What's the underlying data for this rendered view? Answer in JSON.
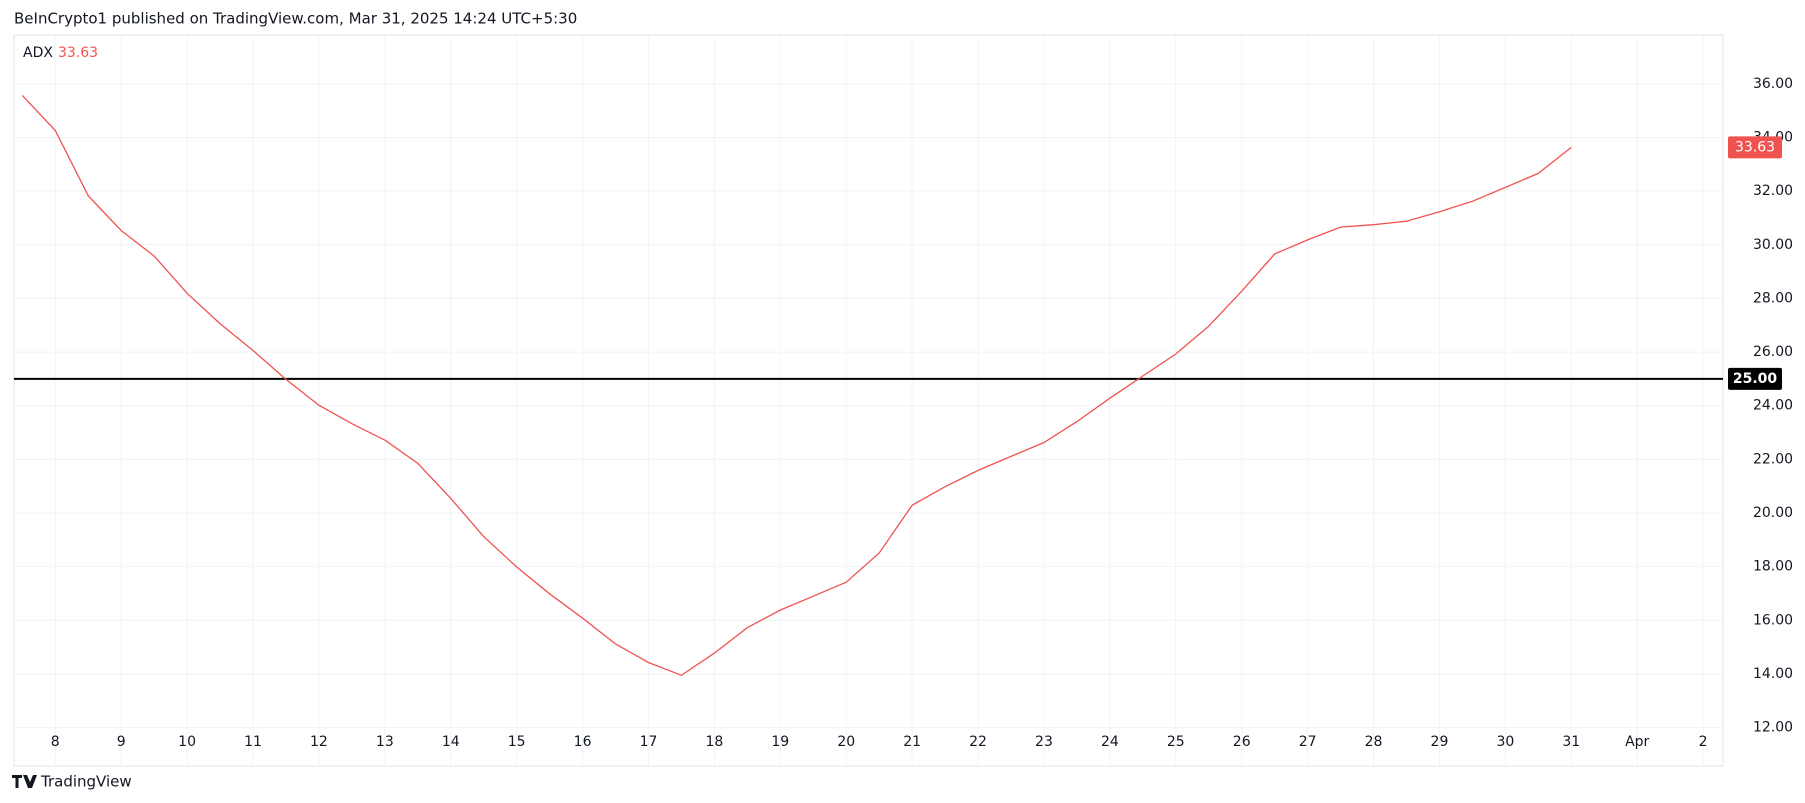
{
  "header": "BeInCrypto1 published on TradingView.com, Mar 31, 2025 14:24 UTC+5:30",
  "footer": "TradingView",
  "chart_data": {
    "type": "line",
    "categories": [
      null,
      "8",
      null,
      "9",
      null,
      "10",
      null,
      "11",
      null,
      "12",
      null,
      "13",
      null,
      "14",
      null,
      "15",
      null,
      "16",
      null,
      "17",
      null,
      "18",
      null,
      "19",
      null,
      "20",
      null,
      "21",
      null,
      "22",
      null,
      "23",
      null,
      "24",
      null,
      "25",
      null,
      "26",
      null,
      "27",
      null,
      "28",
      null,
      "29",
      null,
      "30",
      null,
      "31",
      null,
      "Apr",
      null,
      "2"
    ],
    "series": [
      {
        "name": "ADX",
        "color": "#ef5350",
        "values": [
          35.57,
          34.26,
          31.83,
          30.53,
          29.58,
          28.19,
          27.06,
          26.06,
          24.98,
          24.02,
          23.33,
          22.72,
          21.85,
          20.55,
          19.12,
          17.99,
          16.99,
          16.08,
          15.12,
          14.43,
          13.95,
          14.78,
          15.73,
          16.38,
          16.9,
          17.42,
          18.51,
          20.29,
          20.98,
          21.59,
          22.11,
          22.63,
          23.41,
          24.28,
          25.11,
          25.93,
          26.97,
          28.27,
          29.66,
          30.18,
          30.66,
          30.75,
          30.88,
          31.23,
          31.62,
          32.14,
          32.66,
          33.63,
          null,
          null,
          null,
          null
        ]
      }
    ],
    "ylim": [
      10.57,
      37.82
    ],
    "yticks": [
      {
        "value": 12,
        "label": "12.00"
      },
      {
        "value": 14,
        "label": "14.00"
      },
      {
        "value": 16,
        "label": "16.00"
      },
      {
        "value": 18,
        "label": "18.00"
      },
      {
        "value": 20,
        "label": "20.00"
      },
      {
        "value": 22,
        "label": "22.00"
      },
      {
        "value": 24,
        "label": "24.00"
      },
      {
        "value": 26,
        "label": "26.00"
      },
      {
        "value": 28,
        "label": "28.00"
      },
      {
        "value": 30,
        "label": "30.00"
      },
      {
        "value": 32,
        "label": "32.00"
      },
      {
        "value": 34,
        "label": "34.00"
      },
      {
        "value": 36,
        "label": "36.00"
      }
    ],
    "hline": {
      "value": 25,
      "label": "25.00",
      "color": "#000000"
    },
    "grid": true
  }
}
